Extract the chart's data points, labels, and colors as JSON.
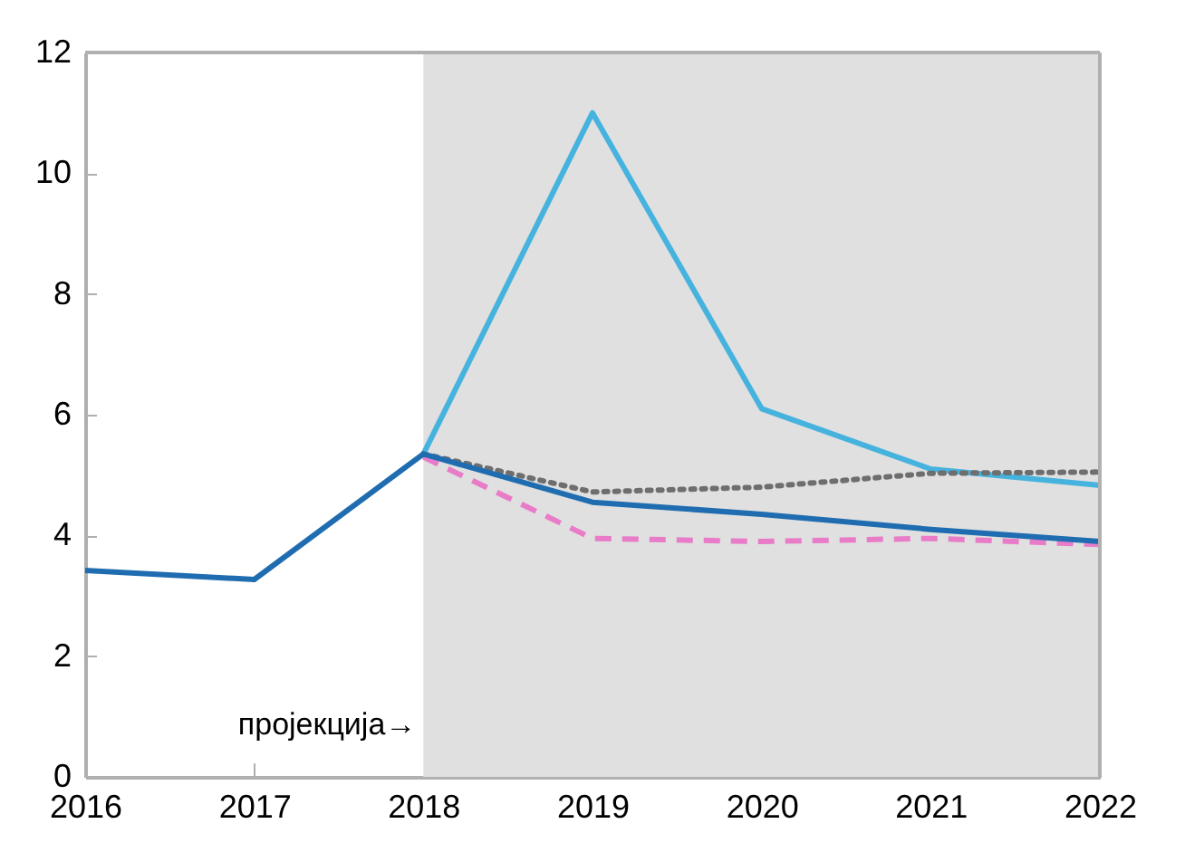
{
  "chart_data": {
    "type": "line",
    "x": [
      2016,
      2017,
      2018,
      2019,
      2020,
      2021,
      2022
    ],
    "xlim": [
      2016,
      2022
    ],
    "xticks": [
      2016,
      2017,
      2018,
      2019,
      2020,
      2021,
      2022
    ],
    "ylim": [
      0,
      12
    ],
    "yticks": [
      0,
      2,
      4,
      6,
      8,
      10,
      12
    ],
    "grid": false,
    "bands": [
      {
        "axis": "x",
        "from": 2018,
        "to": 2022,
        "color": "#e0e0e0"
      }
    ],
    "annotations": [
      {
        "text": "пројекција→",
        "x": 2018,
        "y": 0.85
      }
    ],
    "series": [
      {
        "color": "#46b3de",
        "line_style": "solid",
        "values": [
          null,
          null,
          5.35,
          11.0,
          6.1,
          5.1,
          4.83
        ]
      },
      {
        "color": "#6e6e6e",
        "line_style": "dotted",
        "values": [
          null,
          null,
          5.35,
          4.72,
          4.8,
          5.03,
          5.05
        ]
      },
      {
        "color": "#e87cc8",
        "line_style": "dashed",
        "values": [
          null,
          null,
          5.3,
          3.95,
          3.9,
          3.95,
          3.85
        ]
      },
      {
        "color": "#1f6db0",
        "line_style": "solid",
        "values": [
          3.42,
          3.27,
          5.35,
          4.55,
          4.35,
          4.1,
          3.9
        ]
      }
    ]
  }
}
